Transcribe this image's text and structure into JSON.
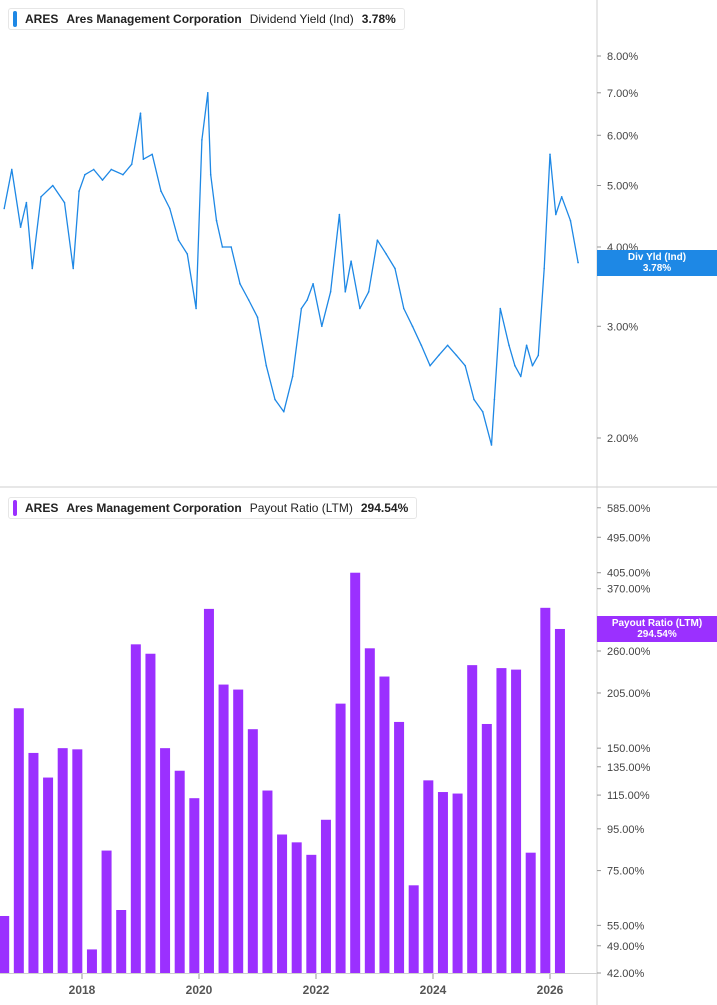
{
  "top_panel": {
    "legend": {
      "ticker": "ARES",
      "company": "Ares Management Corporation",
      "metric": "Dividend Yield (Ind)",
      "value": "3.78%"
    },
    "tag": {
      "label": "Div Yld (Ind)",
      "value": "3.78%"
    },
    "color": "#1e88e5"
  },
  "bottom_panel": {
    "legend": {
      "ticker": "ARES",
      "company": "Ares Management Corporation",
      "metric": "Payout Ratio (LTM)",
      "value": "294.54%"
    },
    "tag": {
      "label": "Payout Ratio (LTM)",
      "value": "294.54%"
    },
    "color": "#9b30ff"
  },
  "chart_data": [
    {
      "type": "line",
      "scale": "log",
      "ylim": [
        1.85,
        9.0
      ],
      "y_ticks": [
        "2.00%",
        "3.00%",
        "4.00%",
        "5.00%",
        "6.00%",
        "7.00%",
        "8.00%"
      ],
      "y_tick_values": [
        2,
        3,
        4,
        5,
        6,
        7,
        8
      ],
      "x_ticks": [
        "2018",
        "2020",
        "2022",
        "2024",
        "2026"
      ],
      "x_tick_values": [
        2018,
        2020,
        2022,
        2024,
        2026
      ],
      "series": [
        {
          "name": "Dividend Yield (Ind)",
          "x": [
            2016.67,
            2016.8,
            2016.95,
            2017.05,
            2017.15,
            2017.3,
            2017.5,
            2017.7,
            2017.85,
            2017.95,
            2018.05,
            2018.2,
            2018.35,
            2018.5,
            2018.7,
            2018.85,
            2019.0,
            2019.05,
            2019.2,
            2019.35,
            2019.5,
            2019.65,
            2019.8,
            2019.95,
            2020.05,
            2020.15,
            2020.2,
            2020.3,
            2020.4,
            2020.55,
            2020.7,
            2020.85,
            2021.0,
            2021.15,
            2021.3,
            2021.45,
            2021.6,
            2021.75,
            2021.85,
            2021.95,
            2022.1,
            2022.25,
            2022.4,
            2022.5,
            2022.6,
            2022.75,
            2022.9,
            2023.05,
            2023.2,
            2023.35,
            2023.5,
            2023.65,
            2023.8,
            2023.95,
            2024.1,
            2024.25,
            2024.4,
            2024.55,
            2024.7,
            2024.85,
            2025.0,
            2025.05,
            2025.15,
            2025.3,
            2025.4,
            2025.5,
            2025.6,
            2025.7,
            2025.8,
            2025.9,
            2026.0,
            2026.1,
            2026.2,
            2026.35,
            2026.48
          ],
          "values": [
            4.6,
            5.3,
            4.3,
            4.7,
            3.7,
            4.8,
            5.0,
            4.7,
            3.7,
            4.9,
            5.2,
            5.3,
            5.1,
            5.3,
            5.2,
            5.4,
            6.5,
            5.5,
            5.6,
            4.9,
            4.6,
            4.1,
            3.9,
            3.2,
            5.9,
            7.0,
            5.2,
            4.4,
            4.0,
            4.0,
            3.5,
            3.3,
            3.1,
            2.6,
            2.3,
            2.2,
            2.5,
            3.2,
            3.3,
            3.5,
            3.0,
            3.4,
            4.5,
            3.4,
            3.8,
            3.2,
            3.4,
            4.1,
            3.9,
            3.7,
            3.2,
            3.0,
            2.8,
            2.6,
            2.7,
            2.8,
            2.7,
            2.6,
            2.3,
            2.2,
            1.95,
            2.3,
            3.2,
            2.8,
            2.6,
            2.5,
            2.8,
            2.6,
            2.7,
            3.7,
            5.6,
            4.5,
            4.8,
            4.4,
            3.78
          ]
        }
      ]
    },
    {
      "type": "bar",
      "scale": "log",
      "ylim": [
        42,
        640
      ],
      "y_ticks": [
        "42.00%",
        "49.00%",
        "55.00%",
        "75.00%",
        "95.00%",
        "115.00%",
        "135.00%",
        "150.00%",
        "205.00%",
        "260.00%",
        "370.00%",
        "405.00%",
        "495.00%",
        "585.00%"
      ],
      "y_tick_values": [
        42,
        49,
        55,
        75,
        95,
        115,
        135,
        150,
        205,
        260,
        370,
        405,
        495,
        585
      ],
      "x_ticks": [
        "2018",
        "2020",
        "2022",
        "2024",
        "2026"
      ],
      "x_tick_values": [
        2018,
        2020,
        2022,
        2024,
        2026
      ],
      "series": [
        {
          "name": "Payout Ratio (LTM)",
          "x": [
            2016.67,
            2016.92,
            2017.17,
            2017.42,
            2017.67,
            2017.92,
            2018.17,
            2018.42,
            2018.67,
            2018.92,
            2019.17,
            2019.42,
            2019.67,
            2019.92,
            2020.17,
            2020.42,
            2020.67,
            2020.92,
            2021.17,
            2021.42,
            2021.67,
            2021.92,
            2022.17,
            2022.42,
            2022.67,
            2022.92,
            2023.17,
            2023.42,
            2023.67,
            2023.92,
            2024.17,
            2024.42,
            2024.67,
            2024.92,
            2025.17,
            2025.42,
            2025.67,
            2025.92,
            2026.17
          ],
          "values": [
            58,
            188,
            146,
            127,
            150,
            149,
            48,
            84,
            60,
            270,
            256,
            150,
            132,
            113,
            330,
            215,
            209,
            167,
            118,
            92,
            88,
            82,
            100,
            193,
            405,
            264,
            225,
            174,
            69,
            125,
            117,
            116,
            240,
            172,
            236,
            234,
            83,
            332,
            294.54
          ]
        }
      ]
    }
  ]
}
